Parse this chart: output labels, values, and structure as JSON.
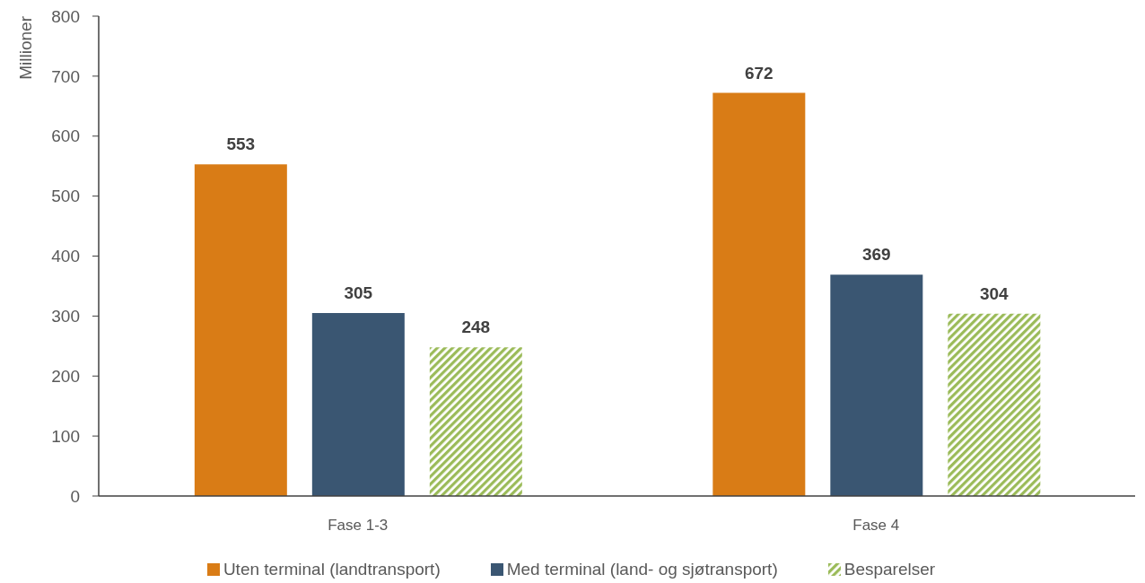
{
  "chart_data": {
    "type": "bar",
    "ylabel": "Millioner",
    "categories": [
      "Fase 1-3",
      "Fase 4"
    ],
    "series": [
      {
        "name": "Uten terminal (landtransport)",
        "color": "#d97c16",
        "values": [
          553,
          672
        ]
      },
      {
        "name": "Med terminal (land- og sjøtransport)",
        "color": "#3a5672",
        "values": [
          305,
          369
        ]
      },
      {
        "name": "Besparelser",
        "color": "#9bbb59",
        "values": [
          248,
          304
        ]
      }
    ],
    "ylim": [
      0,
      800
    ],
    "yticks": [
      0,
      100,
      200,
      300,
      400,
      500,
      600,
      700,
      800
    ],
    "legend": "bottom",
    "data_labels": true
  }
}
